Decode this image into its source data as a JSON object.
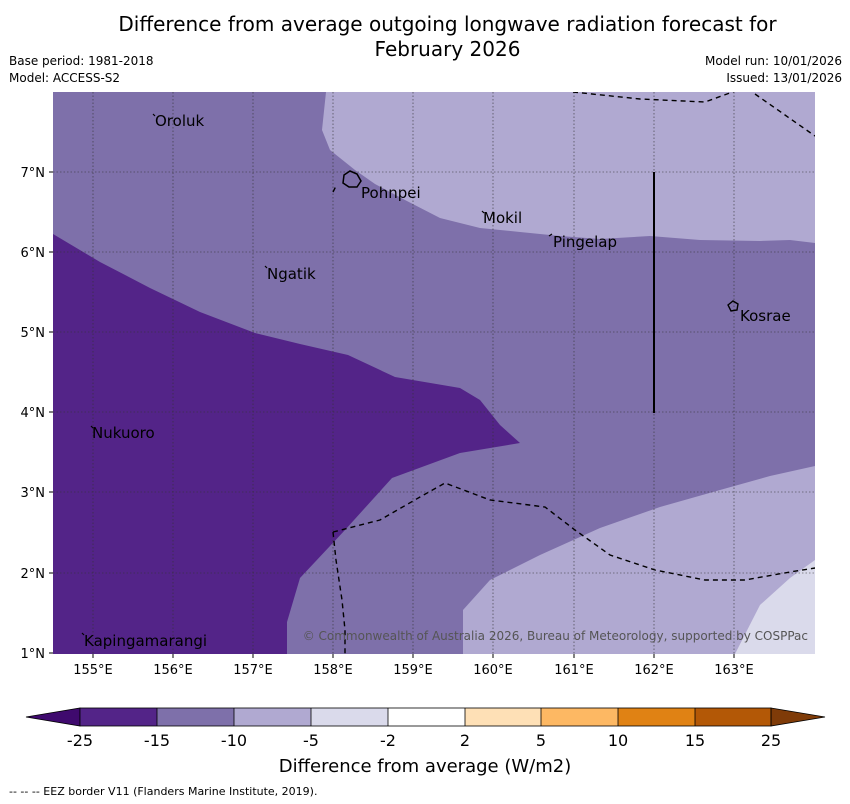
{
  "title": {
    "line1": "Difference from average outgoing longwave radiation forecast for",
    "line2": "February 2026"
  },
  "meta": {
    "base_period": "Base period: 1981-2018",
    "model": "Model: ACCESS-S2",
    "model_run": "Model run: 10/01/2026",
    "issued": "Issued: 13/01/2026"
  },
  "map": {
    "x_ticks": [
      "155°E",
      "156°E",
      "157°E",
      "158°E",
      "159°E",
      "160°E",
      "161°E",
      "162°E",
      "163°E"
    ],
    "y_ticks": [
      "7°N",
      "6°N",
      "5°N",
      "4°N",
      "3°N",
      "2°N",
      "1°N"
    ],
    "places": {
      "oroluk": "Oroluk",
      "pohnpei": "Pohnpei",
      "mokil": "Mokil",
      "pingelap": "Pingelap",
      "ngatik": "Ngatik",
      "kosrae": "Kosrae",
      "nukuoro": "Nukuoro",
      "kapingamarangi": "Kapingamarangi"
    },
    "copyright": "© Commonwealth of Australia 2026, Bureau of Meteorology, supported by COSPPac",
    "colors": {
      "lt_m15": "#532488",
      "m15_m10": "#7e70aa",
      "m10_m5": "#b0a9d1",
      "m5_m2": "#dadaeb"
    }
  },
  "colorbar": {
    "ticks": [
      "-25",
      "-15",
      "-10",
      "-5",
      "-2",
      "2",
      "5",
      "10",
      "15",
      "25"
    ],
    "title": "Difference from average (W/m2)",
    "colors": [
      "#3f0a6e",
      "#532488",
      "#7e70aa",
      "#b0a9d1",
      "#dadaeb",
      "#ffffff",
      "#fee0b6",
      "#fdb863",
      "#e08214",
      "#b35806",
      "#7f3b08"
    ]
  },
  "footer": "--  --  -- EEZ border V11 (Flanders Marine Institute, 2019)."
}
